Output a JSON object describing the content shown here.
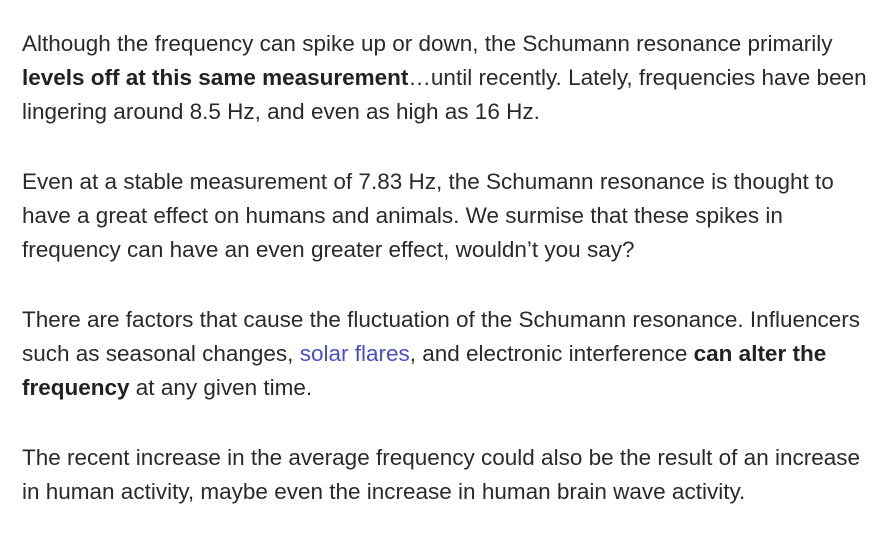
{
  "paragraphs": [
    [
      {
        "text": "Although the frequency can spike up or down, the Schumann resonance primarily "
      },
      {
        "text": "levels off at this same measurement",
        "style": "bold"
      },
      {
        "text": "…until recently. Lately, frequencies have been lingering around 8.5 Hz, and even as high as 16 Hz."
      }
    ],
    [
      {
        "text": "Even at a stable measurement of 7.83 Hz, the Schumann resonance is thought to have a great effect on humans and animals. We surmise that these spikes in frequency can have an even greater effect, wouldn’t you say?"
      }
    ],
    [
      {
        "text": "There are factors that cause the fluctuation of the Schumann resonance. Influencers such as seasonal changes, "
      },
      {
        "text": "solar flares",
        "style": "link"
      },
      {
        "text": ", and electronic interference "
      },
      {
        "text": "can alter the frequency",
        "style": "bold"
      },
      {
        "text": " at any given time."
      }
    ],
    [
      {
        "text": "The recent increase in the average frequency could also be the result of an increase in human activity, maybe even the increase in human brain wave activity."
      }
    ]
  ]
}
